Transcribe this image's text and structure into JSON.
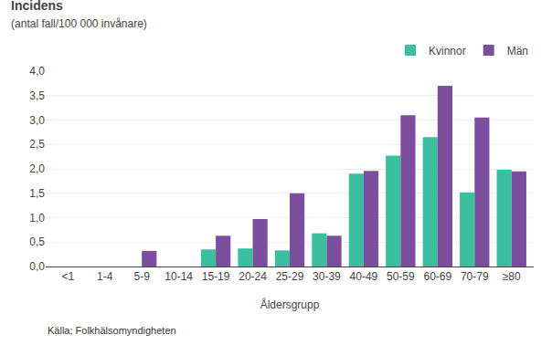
{
  "chart_data": {
    "type": "bar",
    "title": "Incidens",
    "subtitle": "(antal fall/100 000 invånare)",
    "xlabel": "Åldersgrupp",
    "categories": [
      "<1",
      "1-4",
      "5-9",
      "10-14",
      "15-19",
      "20-24",
      "25-29",
      "30-39",
      "40-49",
      "50-59",
      "60-69",
      "70-79",
      "≥80"
    ],
    "series": [
      {
        "name": "Kvinnor",
        "color": "#3bbf9e",
        "values": [
          0.0,
          0.0,
          0.0,
          0.0,
          0.35,
          0.37,
          0.33,
          0.68,
          1.9,
          2.27,
          2.65,
          1.52,
          1.98
        ]
      },
      {
        "name": "Män",
        "color": "#7b4f9e",
        "values": [
          0.0,
          0.0,
          0.32,
          0.0,
          0.63,
          0.97,
          1.5,
          0.63,
          1.96,
          3.1,
          3.7,
          3.05,
          1.95
        ]
      }
    ],
    "ylim": [
      0,
      4.0
    ],
    "yticks": [
      {
        "value": 0.0,
        "label": "0,0"
      },
      {
        "value": 0.5,
        "label": "0,5"
      },
      {
        "value": 1.0,
        "label": "1,0"
      },
      {
        "value": 1.5,
        "label": "1,5"
      },
      {
        "value": 2.0,
        "label": "2,0"
      },
      {
        "value": 2.5,
        "label": "2,5"
      },
      {
        "value": 3.0,
        "label": "3,0"
      },
      {
        "value": 3.5,
        "label": "3,5"
      },
      {
        "value": 4.0,
        "label": "4,0"
      }
    ],
    "grid": true,
    "legend": "top",
    "annotations": [
      "Källa: Folkhälsomyndigheten"
    ]
  }
}
